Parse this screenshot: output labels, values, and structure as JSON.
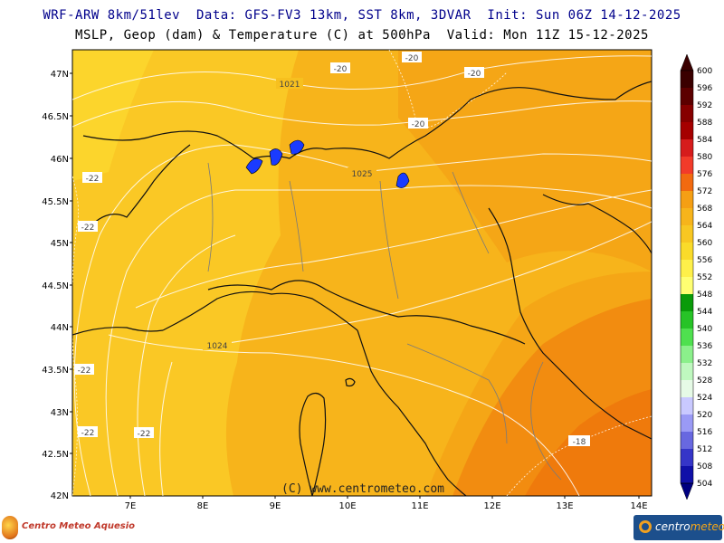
{
  "header": {
    "line1": "WRF-ARW 8km/51lev  Data: GFS-FV3 13km, SST 8km, 3DVAR  Init: Sun 06Z 14-12-2025",
    "line2": "MSLP, Geop (dam) & Temperature (C) at 500hPa  Valid: Mon 11Z 15-12-2025"
  },
  "axes": {
    "lat_labels": [
      "47N",
      "46.5N",
      "46N",
      "45.5N",
      "45N",
      "44.5N",
      "44N",
      "43.5N",
      "43N",
      "42.5N",
      "42N"
    ],
    "lon_labels": [
      "7E",
      "8E",
      "9E",
      "10E",
      "11E",
      "12E",
      "13E",
      "14E"
    ]
  },
  "isobars": {
    "labels": [
      "1021",
      "1025",
      "1024"
    ]
  },
  "isotherms": {
    "labels": [
      "-20",
      "-20",
      "-20",
      "-20",
      "-22",
      "-22",
      "-22",
      "-22",
      "-22",
      "-18"
    ]
  },
  "colorbar": {
    "labels": [
      "600",
      "596",
      "592",
      "588",
      "584",
      "580",
      "576",
      "572",
      "568",
      "564",
      "560",
      "556",
      "552",
      "548",
      "544",
      "540",
      "536",
      "532",
      "528",
      "524",
      "520",
      "516",
      "512",
      "508",
      "504"
    ],
    "colors": [
      "#3a0000",
      "#5c0000",
      "#860000",
      "#a50000",
      "#d61c1c",
      "#f23b2a",
      "#f26a10",
      "#f59f14",
      "#f7b41b",
      "#f8c722",
      "#fadb2a",
      "#fef04a",
      "#ffff72",
      "#0a9b0a",
      "#27c327",
      "#4fe04f",
      "#8bf08b",
      "#bff8bf",
      "#e6fae6",
      "#c9c9ff",
      "#9a9af5",
      "#6868e0",
      "#3535c8",
      "#1010a8",
      "#000080"
    ]
  },
  "credit": "(C) www.centrometeo.com",
  "logos": {
    "left_text": "Centro Meteo Aquesio",
    "right_text_a": "centro",
    "right_text_b": "meteo"
  }
}
